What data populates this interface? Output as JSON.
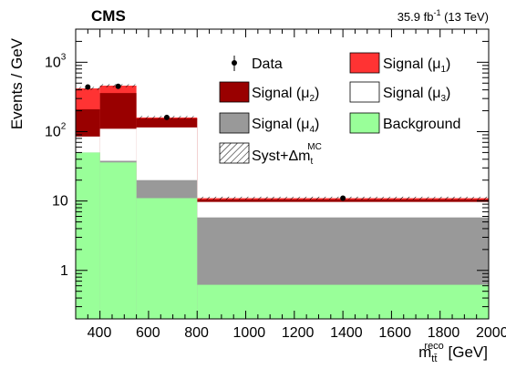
{
  "chart_data": {
    "type": "bar",
    "stacked": true,
    "y_scale": "log",
    "grid": false,
    "experiment": "CMS",
    "luminosity_label": "35.9 fb",
    "luminosity_exponent": "-1",
    "energy_label": " (13 TeV)",
    "xlabel_main": "m",
    "xlabel_sub": "tt̄",
    "xlabel_sup": "reco",
    "xlabel_unit": " [GeV]",
    "ylabel": "Events / GeV",
    "xlim": [
      300,
      2000
    ],
    "ylim": [
      0.2,
      3000
    ],
    "x_ticks": [
      "400",
      "600",
      "800",
      "1000",
      "1200",
      "1400",
      "1600",
      "1800",
      "2000"
    ],
    "y_ticks": [
      {
        "value": 1,
        "base": "1",
        "exp": ""
      },
      {
        "value": 10,
        "base": "10",
        "exp": ""
      },
      {
        "value": 100,
        "base": "10",
        "exp": "2"
      },
      {
        "value": 1000,
        "base": "10",
        "exp": "3"
      }
    ],
    "bin_edges": [
      300,
      400,
      550,
      800,
      2000
    ],
    "series": [
      {
        "name": "Background",
        "color": "#99ff99",
        "cumulative": [
          50,
          36,
          11,
          0.62
        ]
      },
      {
        "name": "Signal (μ4)",
        "color": "#999999",
        "cumulative": [
          50,
          38,
          20,
          5.8
        ]
      },
      {
        "name": "Signal (μ3)",
        "color": "#ffffff",
        "cumulative": [
          85,
          110,
          115,
          9.7
        ]
      },
      {
        "name": "Signal (μ2)",
        "color": "#990000",
        "cumulative": [
          210,
          360,
          155,
          10.5
        ]
      },
      {
        "name": "Signal (μ1)",
        "color": "#ff3333",
        "cumulative": [
          420,
          460,
          160,
          11
        ]
      }
    ],
    "data_points": [
      {
        "x": 350,
        "y": 440
      },
      {
        "x": 475,
        "y": 450
      },
      {
        "x": 675,
        "y": 160
      },
      {
        "x": 1400,
        "y": 11
      }
    ],
    "legend": [
      {
        "key": "data",
        "text": "Data",
        "sub": ""
      },
      {
        "key": "mu1",
        "text": "Signal (μ",
        "sub": "1",
        "tail": ")"
      },
      {
        "key": "mu2",
        "text": "Signal (μ",
        "sub": "2",
        "tail": ")"
      },
      {
        "key": "mu3",
        "text": "Signal (μ",
        "sub": "3",
        "tail": ")"
      },
      {
        "key": "mu4",
        "text": "Signal (μ",
        "sub": "4",
        "tail": ")"
      },
      {
        "key": "bkg",
        "text": "Background",
        "sub": ""
      },
      {
        "key": "syst",
        "text": "Syst+Δm",
        "sub": "t",
        "sup": "MC"
      }
    ]
  }
}
